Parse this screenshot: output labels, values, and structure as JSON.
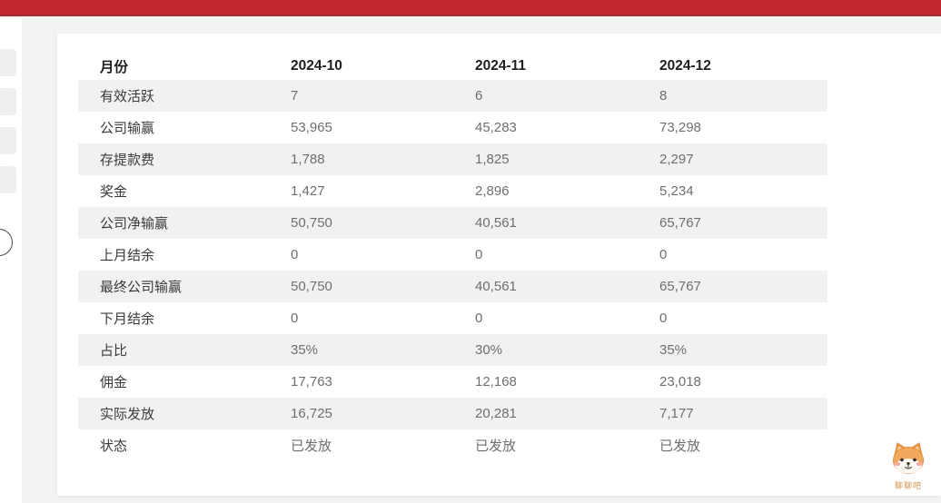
{
  "topbar": {
    "color": "#c2272e"
  },
  "table": {
    "header": {
      "col0": "月份",
      "col1": "2024-10",
      "col2": "2024-11",
      "col3": "2024-12"
    },
    "rows": [
      {
        "label": "有效活跃",
        "values": [
          "7",
          "6",
          "8"
        ]
      },
      {
        "label": "公司输赢",
        "values": [
          "53,965",
          "45,283",
          "73,298"
        ]
      },
      {
        "label": "存提款费",
        "values": [
          "1,788",
          "1,825",
          "2,297"
        ]
      },
      {
        "label": "奖金",
        "values": [
          "1,427",
          "2,896",
          "5,234"
        ]
      },
      {
        "label": "公司净输赢",
        "values": [
          "50,750",
          "40,561",
          "65,767"
        ]
      },
      {
        "label": "上月结余",
        "values": [
          "0",
          "0",
          "0"
        ]
      },
      {
        "label": "最终公司输赢",
        "values": [
          "50,750",
          "40,561",
          "65,767"
        ]
      },
      {
        "label": "下月结余",
        "values": [
          "0",
          "0",
          "0"
        ]
      },
      {
        "label": "占比",
        "values": [
          "35%",
          "30%",
          "35%"
        ]
      },
      {
        "label": "佣金",
        "values": [
          "17,763",
          "12,168",
          "23,018"
        ]
      },
      {
        "label": "实际发放",
        "values": [
          "16,725",
          "20,281",
          "7,177"
        ]
      },
      {
        "label": "状态",
        "values": [
          "已发放",
          "已发放",
          "已发放"
        ]
      }
    ]
  },
  "mascot": {
    "label": "聊聊吧"
  }
}
